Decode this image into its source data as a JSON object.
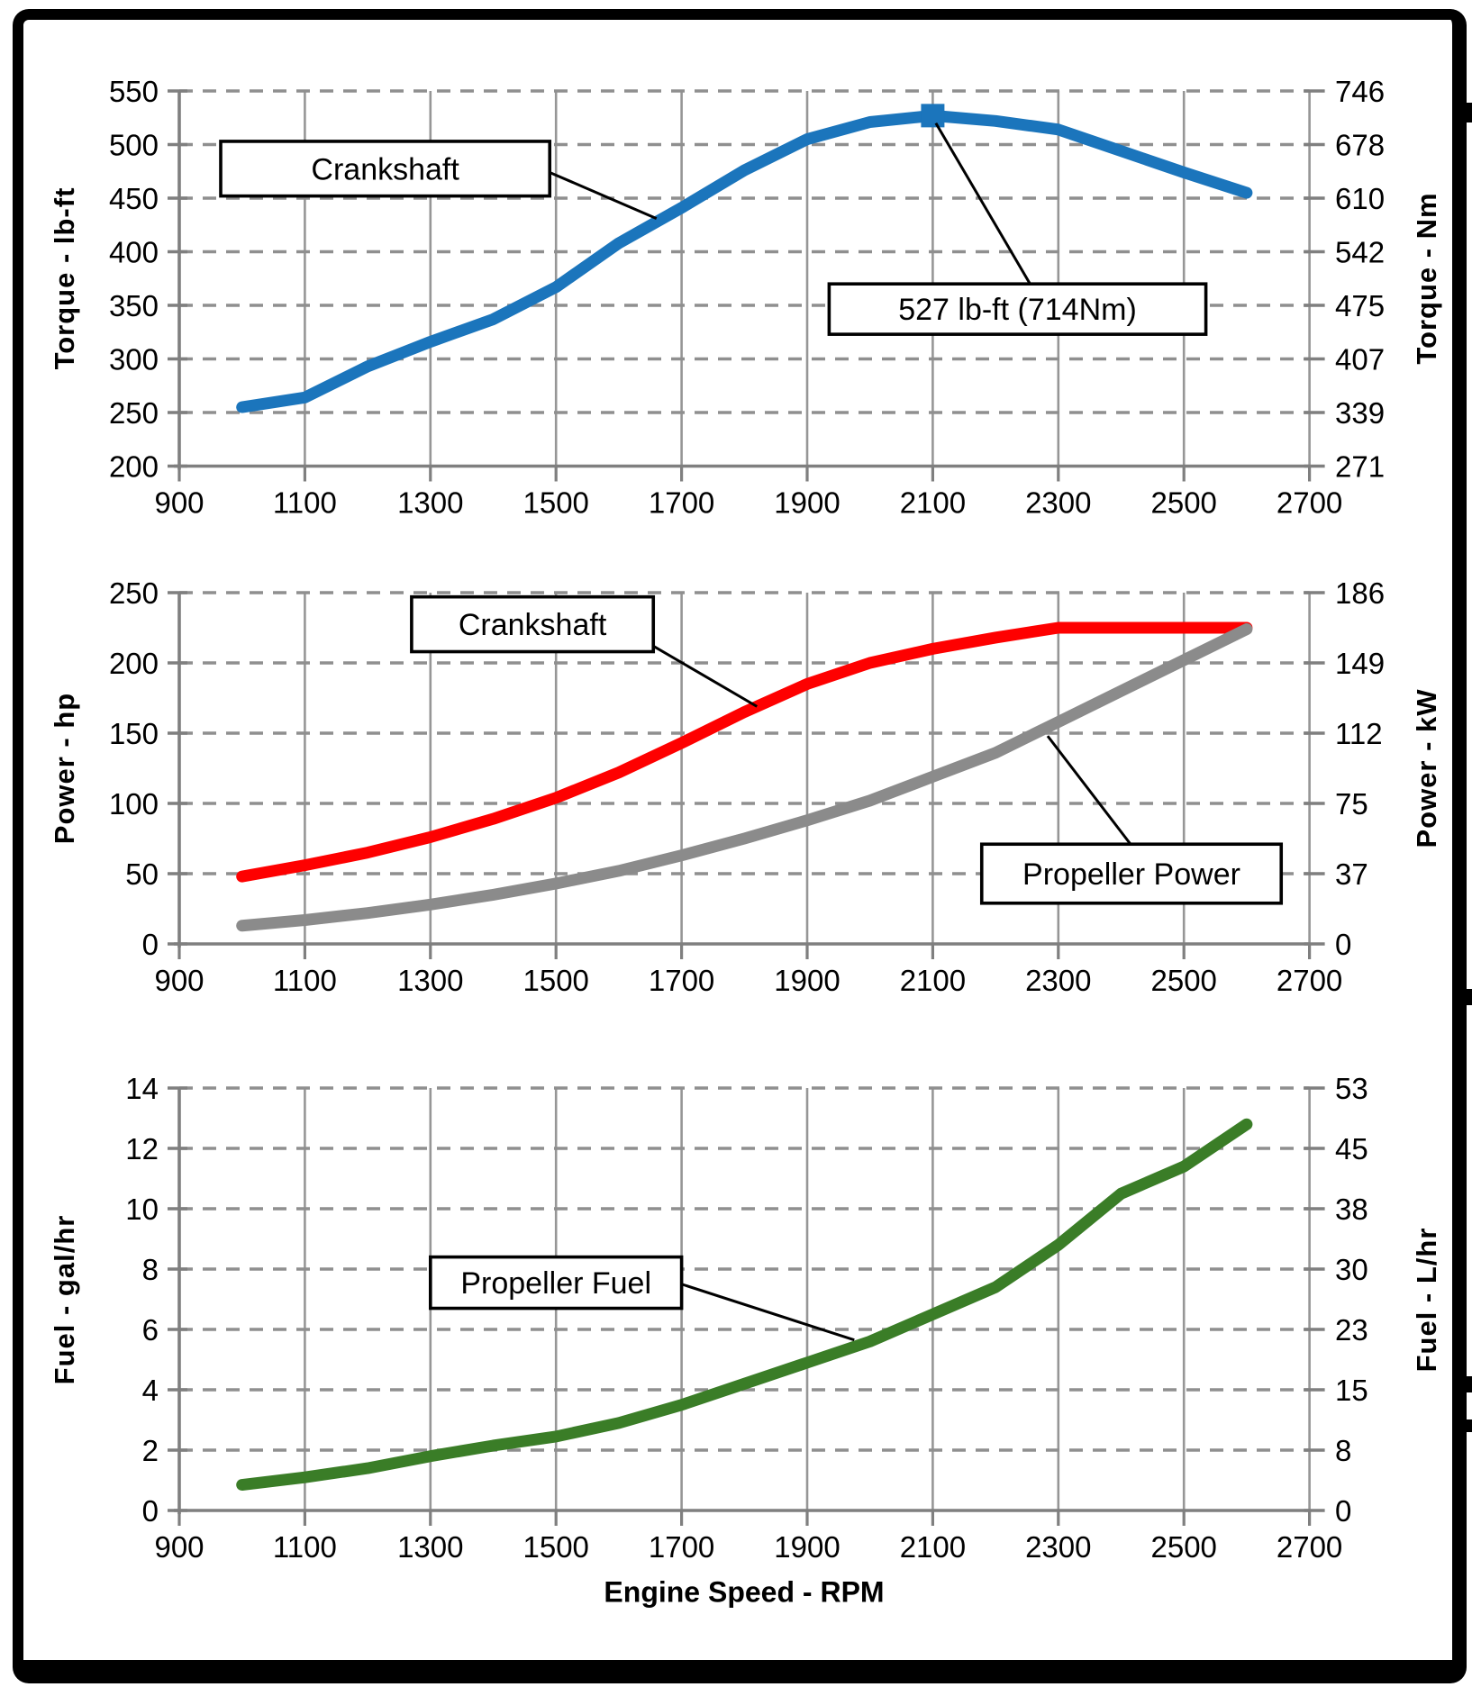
{
  "figure": {
    "background": "#ffffff",
    "frame_color": "#000000",
    "grid_color": "#969696",
    "axis_color": "#7f7f7f",
    "text_color": "#000000"
  },
  "x_axis": {
    "label": "Engine Speed - RPM",
    "min": 900,
    "max": 2700,
    "ticks": [
      900,
      1100,
      1300,
      1500,
      1700,
      1900,
      2100,
      2300,
      2500,
      2700
    ],
    "grid_step": 200
  },
  "chart_data": [
    {
      "name": "torque-vs-rpm",
      "type": "line",
      "grid": true,
      "xlim": [
        900,
        2700
      ],
      "ylim": [
        200,
        550
      ],
      "y_left": {
        "label": "Torque - lb-ft",
        "ticks": [
          550,
          500,
          450,
          400,
          350,
          300,
          250,
          200
        ]
      },
      "y_right": {
        "label": "Torque - Nm",
        "ticks": [
          746,
          678,
          610,
          542,
          475,
          407,
          339,
          271
        ]
      },
      "x": [
        1000,
        1100,
        1200,
        1300,
        1400,
        1500,
        1600,
        1700,
        1800,
        1900,
        2000,
        2100,
        2200,
        2300,
        2400,
        2500,
        2600
      ],
      "series": [
        {
          "name": "Crankshaft",
          "color": "#1B75BC",
          "values": [
            255,
            264,
            293,
            316,
            337,
            367,
            408,
            441,
            476,
            505,
            521,
            527,
            522,
            514,
            494,
            474,
            455
          ],
          "marker": {
            "shape": "square",
            "x": 2100,
            "y": 527,
            "color": "#1B75BC"
          }
        }
      ],
      "annotations": [
        {
          "id": "torque-crankshaft-callout",
          "text": "Crankshaft",
          "box": {
            "x1": 966,
            "y1": 503,
            "x2": 1490,
            "y2": 452
          },
          "leader": [
            [
              1490,
              474
            ],
            [
              1660,
              431
            ]
          ]
        },
        {
          "id": "torque-peak-callout",
          "text": "527 lb-ft (714Nm)",
          "box": {
            "x1": 1935,
            "y1": 370,
            "x2": 2535,
            "y2": 323
          },
          "leader": [
            [
              2105,
              520
            ],
            [
              2255,
              370
            ]
          ]
        }
      ]
    },
    {
      "name": "power-vs-rpm",
      "type": "line",
      "grid": true,
      "xlim": [
        900,
        2700
      ],
      "ylim": [
        0,
        250
      ],
      "y_left": {
        "label": "Power - hp",
        "ticks": [
          250,
          200,
          150,
          100,
          50,
          0
        ]
      },
      "y_right": {
        "label": "Power - kW",
        "ticks": [
          186,
          149,
          112,
          75,
          37,
          0
        ]
      },
      "x": [
        1000,
        1100,
        1200,
        1300,
        1400,
        1500,
        1600,
        1700,
        1800,
        1900,
        2000,
        2100,
        2200,
        2300,
        2400,
        2500,
        2600
      ],
      "series": [
        {
          "name": "Crankshaft",
          "color": "#FE0000",
          "values": [
            48,
            56,
            65,
            76,
            89,
            104,
            122,
            143,
            165,
            185,
            200,
            210,
            218,
            225,
            225,
            225,
            225
          ]
        },
        {
          "name": "Propeller Power",
          "color": "#8B8B8B",
          "values": [
            13,
            17,
            22,
            28,
            35,
            43,
            52,
            63,
            75,
            88,
            102,
            119,
            136,
            158,
            180,
            202,
            224
          ]
        }
      ],
      "annotations": [
        {
          "id": "power-crankshaft-callout",
          "text": "Crankshaft",
          "box": {
            "x1": 1270,
            "y1": 247,
            "x2": 1655,
            "y2": 208
          },
          "leader": [
            [
              1655,
              212
            ],
            [
              1820,
              169
            ]
          ]
        },
        {
          "id": "power-propeller-callout",
          "text": "Propeller Power",
          "box": {
            "x1": 2178,
            "y1": 71,
            "x2": 2655,
            "y2": 29
          },
          "leader": [
            [
              2283,
              148
            ],
            [
              2415,
              71
            ]
          ]
        }
      ]
    },
    {
      "name": "fuel-vs-rpm",
      "type": "line",
      "grid": true,
      "xlim": [
        900,
        2700
      ],
      "ylim": [
        0,
        14
      ],
      "y_left": {
        "label": "Fuel - gal/hr",
        "ticks": [
          14,
          12,
          10,
          8,
          6,
          4,
          2,
          0
        ]
      },
      "y_right": {
        "label": "Fuel - L/hr",
        "ticks": [
          53,
          45,
          38,
          30,
          23,
          15,
          8,
          0
        ]
      },
      "x": [
        1000,
        1100,
        1200,
        1300,
        1400,
        1500,
        1600,
        1700,
        1800,
        1900,
        2000,
        2100,
        2200,
        2300,
        2400,
        2500,
        2600
      ],
      "series": [
        {
          "name": "Propeller Fuel",
          "color": "#3A7D27",
          "values": [
            0.85,
            1.1,
            1.4,
            1.8,
            2.15,
            2.45,
            2.9,
            3.5,
            4.2,
            4.9,
            5.6,
            6.5,
            7.4,
            8.8,
            10.5,
            11.4,
            12.8
          ]
        }
      ],
      "annotations": [
        {
          "id": "fuel-propeller-callout",
          "text": "Propeller Fuel",
          "box": {
            "x1": 1300,
            "y1": 8.4,
            "x2": 1700,
            "y2": 6.7
          },
          "leader": [
            [
              1700,
              7.5
            ],
            [
              1975,
              5.65
            ]
          ]
        }
      ]
    }
  ]
}
